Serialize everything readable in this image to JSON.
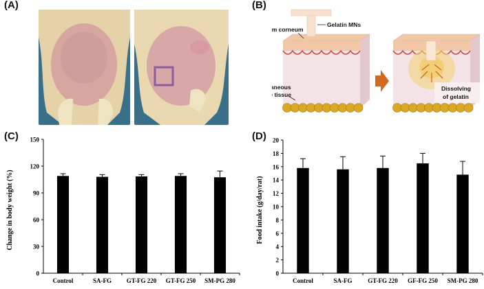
{
  "panels": {
    "a": {
      "label": "(A)"
    },
    "b": {
      "label": "(B)",
      "labels": {
        "stratum": "Strantum corneum",
        "mns": "Gelatin MNs",
        "adipose_line1": "Subcutaneous",
        "adipose_line2": "adipose tissue",
        "dissolve_line1": "Dissolving",
        "dissolve_line2": "of gelatin"
      }
    },
    "c": {
      "label": "(C)"
    },
    "d": {
      "label": "(D)"
    }
  },
  "colors": {
    "bar": "#000000",
    "skin_top": "#f2c7a8",
    "dermis": "#f3e3e6",
    "adipose": "#d9a825",
    "arrow": "#d2691e",
    "photo_bg": "#3a6f8a"
  },
  "chart_data": [
    {
      "type": "bar",
      "categories": [
        "Control",
        "SA-FG",
        "GT-FG 220",
        "GT-FG 250",
        "SM-PG 280"
      ],
      "values": [
        109,
        108,
        108.5,
        109,
        107.5
      ],
      "errors": [
        2.5,
        2.5,
        2,
        2.5,
        7
      ],
      "ylabel": "Change in body weight (%)",
      "xlabel": "",
      "ylim": [
        0,
        150
      ],
      "yticks": [
        "0",
        "30",
        "60",
        "90",
        "120",
        "150"
      ],
      "grid": false
    },
    {
      "type": "bar",
      "categories": [
        "Control",
        "SA-FG",
        "GT-FG 220",
        "GF-FG 250",
        "SM-PG 280"
      ],
      "values": [
        15.8,
        15.6,
        15.8,
        16.5,
        14.8
      ],
      "errors": [
        1.4,
        1.9,
        1.8,
        1.5,
        2.0
      ],
      "ylabel": "Food intake (g/day/rat)",
      "xlabel": "",
      "ylim": [
        0,
        20
      ],
      "yticks": [
        "0",
        "2",
        "4",
        "6",
        "8",
        "10",
        "12",
        "14",
        "16",
        "18",
        "20"
      ],
      "grid": false
    }
  ]
}
